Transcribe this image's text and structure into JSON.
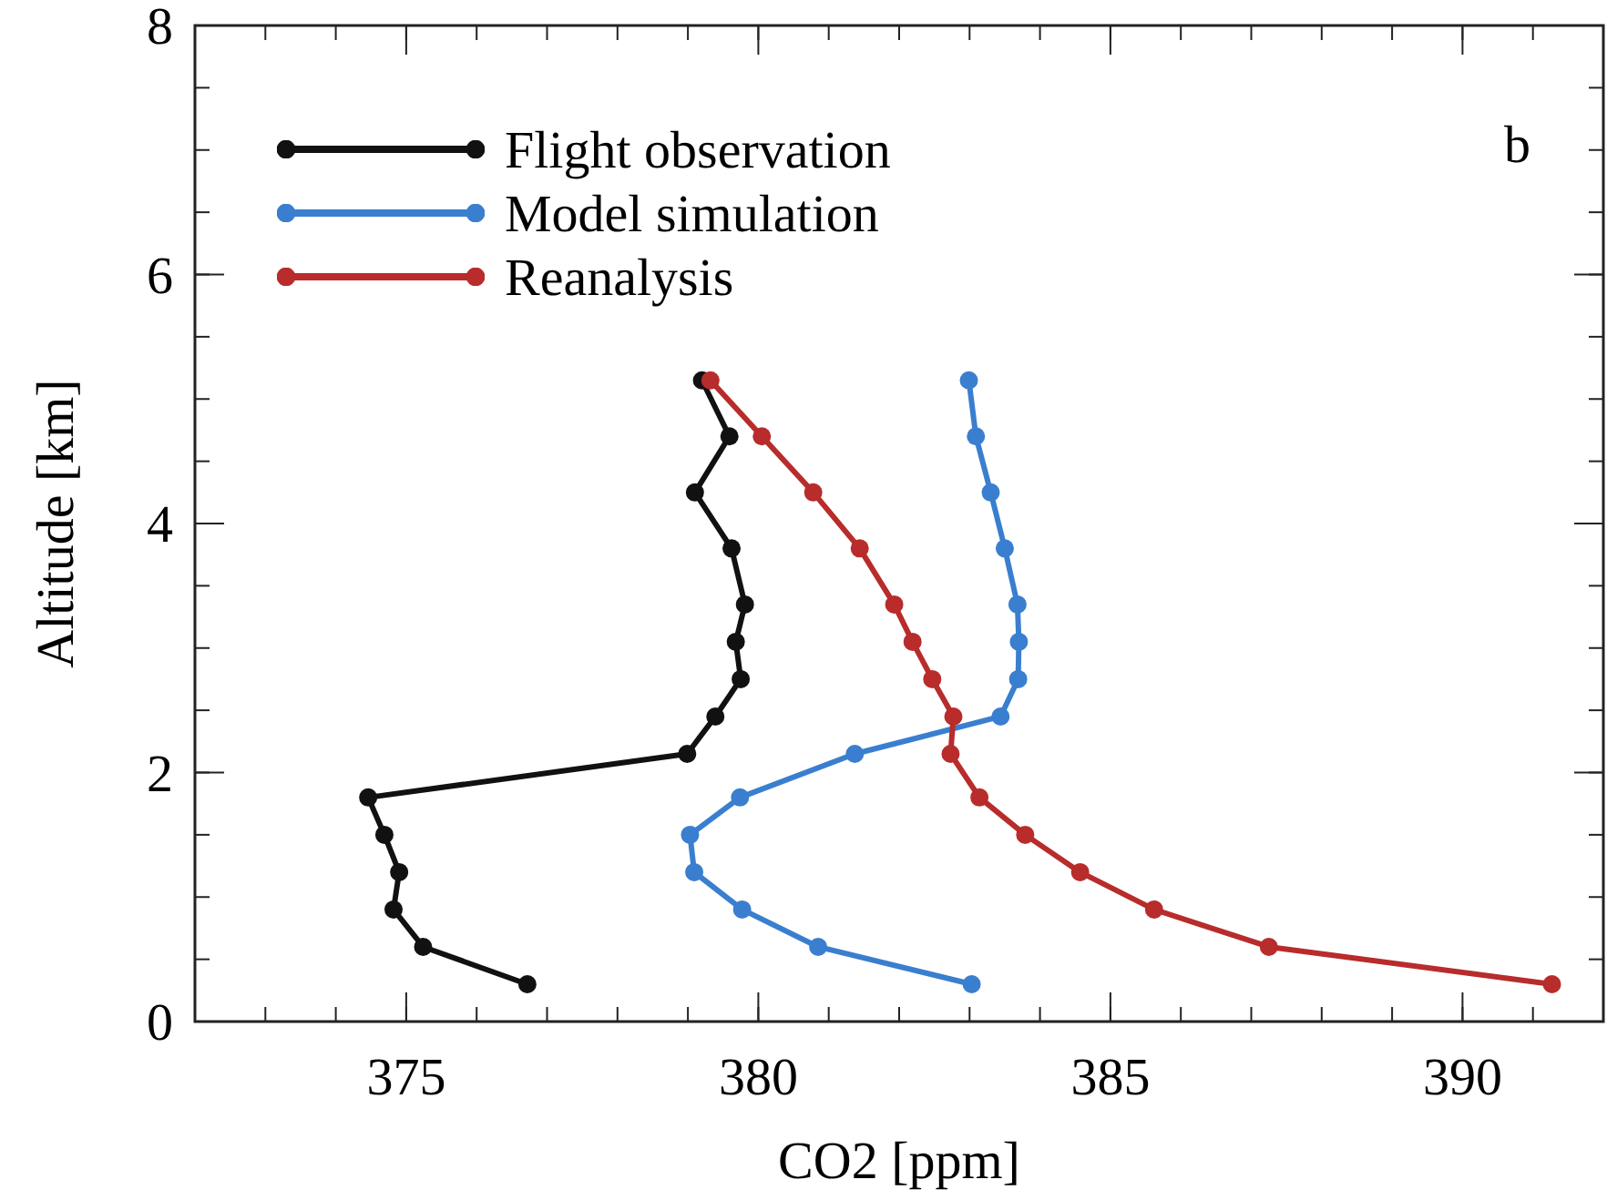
{
  "chart_data": {
    "type": "line",
    "xlabel": "CO2 [ppm]",
    "ylabel": "Altitude [km]",
    "annotations": [
      "b"
    ],
    "xlim": [
      372,
      392
    ],
    "xticks": [
      375,
      380,
      385,
      390
    ],
    "ylim": [
      0,
      8
    ],
    "yticks": [
      0,
      2,
      4,
      6,
      8
    ],
    "grid": false,
    "legend": "top left",
    "marker": "circle",
    "line_style": "solid",
    "series": [
      {
        "name": "Flight observation",
        "color": "#111111",
        "x": [
          379.2,
          379.59,
          379.1,
          379.62,
          379.81,
          379.68,
          379.75,
          379.39,
          378.99,
          374.46,
          374.69,
          374.9,
          374.82,
          375.24,
          376.72
        ],
        "values": [
          5.15,
          4.7,
          4.25,
          3.8,
          3.35,
          3.05,
          2.75,
          2.45,
          2.15,
          1.8,
          1.5,
          1.2,
          0.9,
          0.6,
          0.3
        ]
      },
      {
        "name": "Model simulation",
        "color": "#3a7fcf",
        "x": [
          382.99,
          383.09,
          383.3,
          383.5,
          383.68,
          383.7,
          383.69,
          383.44,
          381.37,
          379.74,
          379.03,
          379.09,
          379.77,
          380.85,
          383.03
        ],
        "values": [
          5.15,
          4.7,
          4.25,
          3.8,
          3.35,
          3.05,
          2.75,
          2.45,
          2.15,
          1.8,
          1.5,
          1.2,
          0.9,
          0.6,
          0.3
        ]
      },
      {
        "name": "Reanalysis",
        "color": "#b82c2c",
        "x": [
          379.32,
          380.05,
          380.78,
          381.44,
          381.93,
          382.19,
          382.47,
          382.77,
          382.73,
          383.14,
          383.79,
          384.57,
          385.62,
          387.25,
          391.27
        ],
        "values": [
          5.15,
          4.7,
          4.25,
          3.8,
          3.35,
          3.05,
          2.75,
          2.45,
          2.15,
          1.8,
          1.5,
          1.2,
          0.9,
          0.6,
          0.3
        ]
      }
    ]
  }
}
